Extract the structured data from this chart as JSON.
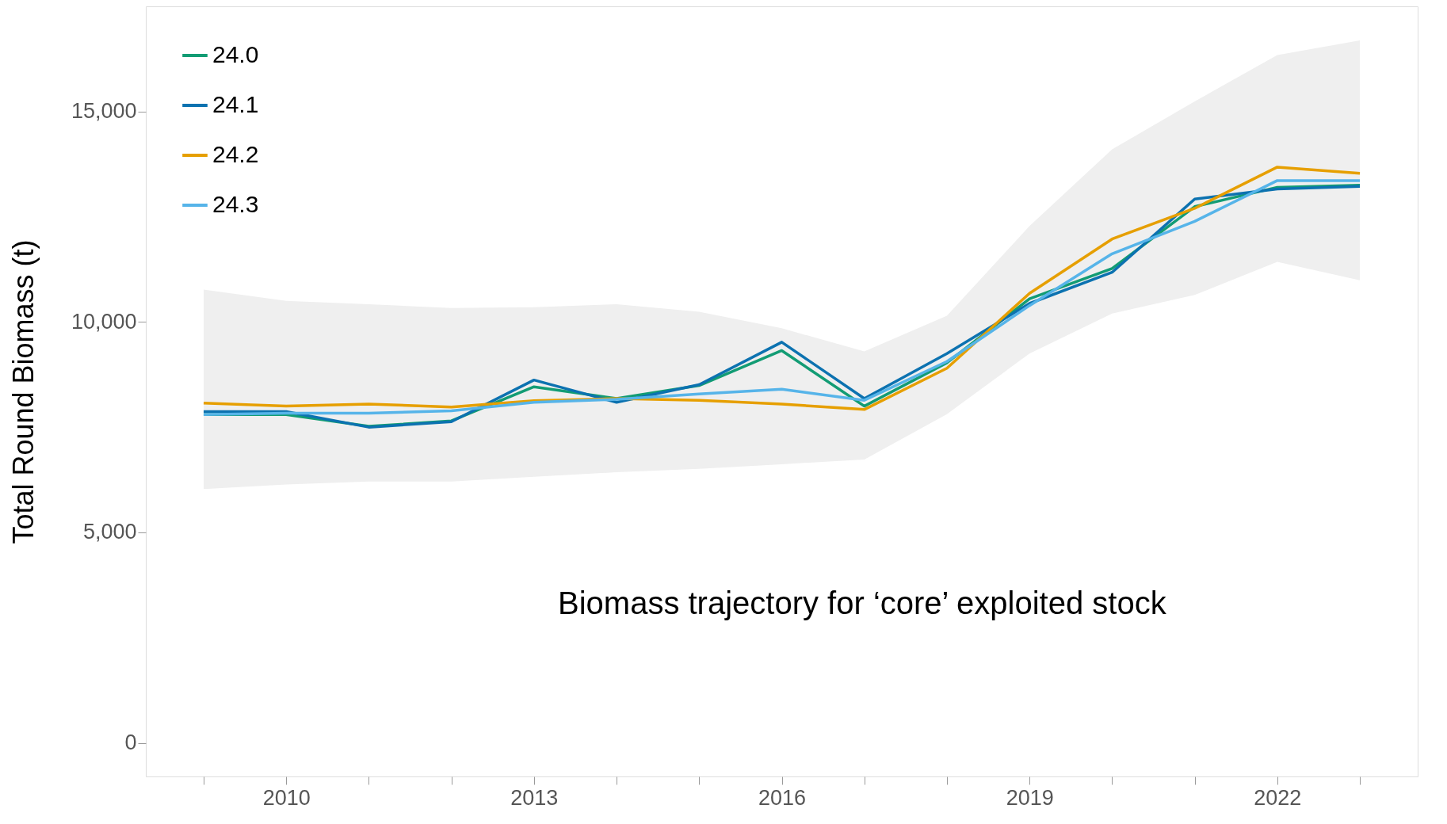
{
  "chart_data": {
    "type": "line",
    "ylabel": "Total Round Biomass (t)",
    "annotations": [
      "Biomass trajectory for ‘core’ exploited stock"
    ],
    "x": [
      2009,
      2010,
      2011,
      2012,
      2013,
      2014,
      2015,
      2016,
      2017,
      2018,
      2019,
      2020,
      2021,
      2022,
      2023
    ],
    "series": [
      {
        "name": "24.0",
        "color": "#129c74",
        "values": [
          7800,
          7800,
          7520,
          7650,
          8460,
          8180,
          8490,
          9320,
          8000,
          9030,
          10550,
          11270,
          12740,
          13200,
          13250
        ]
      },
      {
        "name": "24.1",
        "color": "#0c72b0",
        "values": [
          7870,
          7870,
          7500,
          7630,
          8620,
          8090,
          8510,
          9520,
          8180,
          9250,
          10440,
          11180,
          12920,
          13160,
          13220
        ]
      },
      {
        "name": "24.2",
        "color": "#e69f00",
        "values": [
          8070,
          8000,
          8050,
          7980,
          8130,
          8180,
          8140,
          8050,
          7920,
          8900,
          10680,
          11970,
          12700,
          13680,
          13530
        ]
      },
      {
        "name": "24.3",
        "color": "#56b4e9",
        "values": [
          7800,
          7830,
          7830,
          7890,
          8090,
          8160,
          8290,
          8400,
          8140,
          9060,
          10390,
          11620,
          12390,
          13360,
          13360
        ],
        "lower": [
          6030,
          6140,
          6210,
          6210,
          6320,
          6430,
          6510,
          6620,
          6730,
          7810,
          9250,
          10200,
          10640,
          11430,
          10990
        ],
        "upper": [
          10770,
          10500,
          10420,
          10330,
          10350,
          10420,
          10240,
          9850,
          9300,
          10150,
          12280,
          14100,
          15240,
          16340,
          16690
        ]
      }
    ],
    "xlim": [
      2008.3,
      2023.7
    ],
    "xticks": [
      {
        "value": 2009,
        "label": null
      },
      2010,
      {
        "value": 2011,
        "label": null
      },
      {
        "value": 2012,
        "label": null
      },
      2013,
      {
        "value": 2014,
        "label": null
      },
      {
        "value": 2015,
        "label": null
      },
      2016,
      {
        "value": 2017,
        "label": null
      },
      {
        "value": 2018,
        "label": null
      },
      2019,
      {
        "value": 2020,
        "label": null
      },
      {
        "value": 2021,
        "label": null
      },
      2022,
      {
        "value": 2023,
        "label": null
      }
    ],
    "ylim": [
      -800,
      17500
    ],
    "yticks": [
      0,
      {
        "value": 5000,
        "label": "5,000"
      },
      {
        "value": 10000,
        "label": "10,000"
      },
      {
        "value": 15000,
        "label": "15,000"
      }
    ],
    "grid": false,
    "legend": "top left",
    "marker": "none",
    "line_style": "solid"
  }
}
